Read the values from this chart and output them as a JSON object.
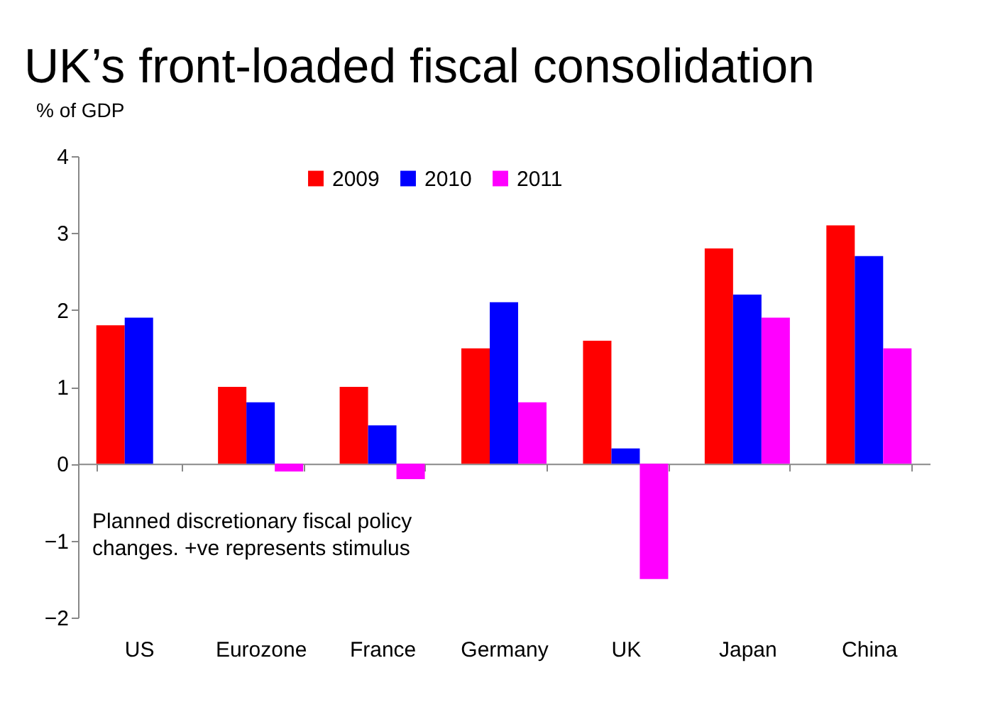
{
  "chart_data": {
    "type": "bar",
    "title": "UK’s front-loaded fiscal consolidation",
    "ylabel": "% of GDP",
    "categories": [
      "US",
      "Eurozone",
      "France",
      "Germany",
      "UK",
      "Japan",
      "China"
    ],
    "series": [
      {
        "name": "2009",
        "color": "#ff0000",
        "values": [
          1.8,
          1.0,
          1.0,
          1.5,
          1.6,
          2.8,
          3.1
        ]
      },
      {
        "name": "2010",
        "color": "#0000ff",
        "values": [
          1.9,
          0.8,
          0.5,
          2.1,
          0.2,
          2.2,
          2.7
        ]
      },
      {
        "name": "2011",
        "color": "#ff00ff",
        "values": [
          null,
          -0.1,
          -0.2,
          0.8,
          -1.5,
          1.9,
          1.5
        ]
      }
    ],
    "ylim": [
      -2,
      4
    ],
    "yticks": [
      -2,
      -1,
      0,
      1,
      2,
      3,
      4
    ],
    "legend": "top",
    "annotations": [
      "Planned discretionary fiscal policy\nchanges. +ve represents stimulus"
    ]
  }
}
